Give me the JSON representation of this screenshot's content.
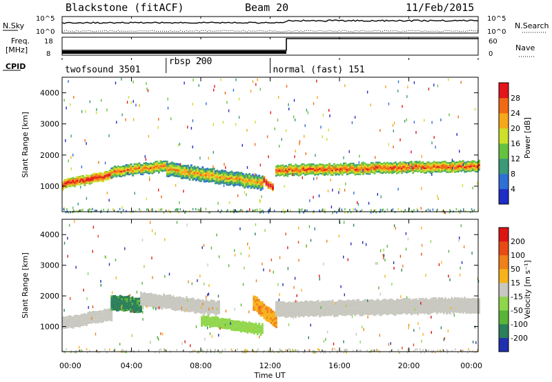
{
  "header": {
    "station": "Blackstone (fitACF)",
    "beam": "Beam 20",
    "date": "11/Feb/2015"
  },
  "aux_panels": {
    "nsky_label": "N.Sky",
    "nsky_ticks": [
      "10^5",
      "10^0"
    ],
    "nsearch_label": "N.Search",
    "nsearch_ticks": [
      "10^5",
      "10^0"
    ],
    "freq_label_line1": "Freq.",
    "freq_label_line2": "[MHz]",
    "freq_ticks": [
      "18",
      "8"
    ],
    "nave_label": "Nave",
    "nave_ticks": [
      "60",
      "0"
    ],
    "cpid_label": "CPID",
    "cpid_segments": [
      {
        "name": "twofsound 3501",
        "start_hr": 0,
        "end_hr": 6
      },
      {
        "name": "rbsp 200",
        "start_hr": 6,
        "end_hr": 12
      },
      {
        "name": "normal (fast) 151",
        "start_hr": 12,
        "end_hr": 24
      }
    ]
  },
  "axes": {
    "xlabel": "Time UT",
    "ylabel": "Slant Range [km]",
    "xticks": [
      "00:00",
      "04:00",
      "08:00",
      "12:00",
      "16:00",
      "20:00",
      "00:00"
    ],
    "yticks": [
      "1000",
      "2000",
      "3000",
      "4000"
    ]
  },
  "colorbars": {
    "power": {
      "label": "Power [dB]",
      "ticks": [
        "4",
        "8",
        "12",
        "16",
        "20",
        "24",
        "28"
      ],
      "colors": [
        "#1e2cc8",
        "#2f6fd6",
        "#3a9a78",
        "#66c23e",
        "#cde02a",
        "#f7a81a",
        "#f06a14",
        "#e3141a"
      ]
    },
    "velocity": {
      "label": "Velocity [m s⁻¹]",
      "ticks": [
        "200",
        "100",
        "50",
        "15",
        "-15",
        "-50",
        "-100",
        "-200"
      ],
      "colors": [
        "#1f2fb0",
        "#2b7f5a",
        "#5ab43a",
        "#8fd64a",
        "#c8c8c0",
        "#f7b21c",
        "#f0801a",
        "#e84a16",
        "#dd1414"
      ]
    }
  },
  "chart_data": [
    {
      "type": "heatmap",
      "name": "Power",
      "xlabel": "Time UT",
      "ylabel": "Slant Range [km]",
      "xlim_hours": [
        0,
        24
      ],
      "ylim_km": [
        180,
        4500
      ],
      "colorbar": "Power [dB]",
      "color_range": [
        0,
        30
      ],
      "grid": false,
      "bands": [
        {
          "t0": 0.0,
          "t1": 2.8,
          "r_center_start": 1050,
          "r_center_end": 1350,
          "width_km": 300,
          "power_db": 22
        },
        {
          "t0": 2.8,
          "t1": 6.0,
          "r_center_start": 1450,
          "r_center_end": 1650,
          "width_km": 350,
          "power_db": 16
        },
        {
          "t0": 6.0,
          "t1": 11.5,
          "r_center_start": 1550,
          "r_center_end": 1100,
          "width_km": 450,
          "power_db": 14
        },
        {
          "t0": 11.6,
          "t1": 12.1,
          "r_center_start": 1200,
          "r_center_end": 950,
          "width_km": 250,
          "power_db": 26
        },
        {
          "t0": 12.3,
          "t1": 24.0,
          "r_center_start": 1500,
          "r_center_end": 1650,
          "width_km": 350,
          "power_db": 18
        }
      ]
    },
    {
      "type": "heatmap",
      "name": "Velocity",
      "xlabel": "Time UT",
      "ylabel": "Slant Range [km]",
      "xlim_hours": [
        0,
        24
      ],
      "ylim_km": [
        180,
        4500
      ],
      "colorbar": "Velocity [m s⁻¹]",
      "color_range": [
        -200,
        200
      ],
      "grid": false,
      "bands": [
        {
          "t0": 0.0,
          "t1": 2.8,
          "r_center_start": 1100,
          "r_center_end": 1400,
          "width_km": 400,
          "velocity": 0
        },
        {
          "t0": 2.8,
          "t1": 4.5,
          "r_center_start": 1800,
          "r_center_end": 1700,
          "width_km": 500,
          "velocity": -120
        },
        {
          "t0": 4.5,
          "t1": 9.0,
          "r_center_start": 1900,
          "r_center_end": 1600,
          "width_km": 450,
          "velocity": 0
        },
        {
          "t0": 8.0,
          "t1": 11.5,
          "r_center_start": 1200,
          "r_center_end": 900,
          "width_km": 350,
          "velocity": -40
        },
        {
          "t0": 11.0,
          "t1": 12.3,
          "r_center_start": 1800,
          "r_center_end": 1200,
          "width_km": 500,
          "velocity": 60
        },
        {
          "t0": 12.3,
          "t1": 24.0,
          "r_center_start": 1550,
          "r_center_end": 1700,
          "width_km": 500,
          "velocity": 0
        }
      ]
    }
  ]
}
